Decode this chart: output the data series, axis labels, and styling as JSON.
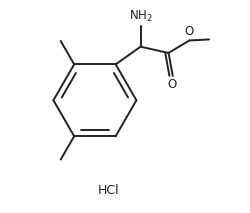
{
  "background_color": "#ffffff",
  "line_color": "#222222",
  "line_width": 1.4,
  "font_size": 8.5,
  "hcl_font_size": 9,
  "xlim": [
    -0.05,
    1.05
  ],
  "ylim": [
    0.0,
    1.0
  ]
}
